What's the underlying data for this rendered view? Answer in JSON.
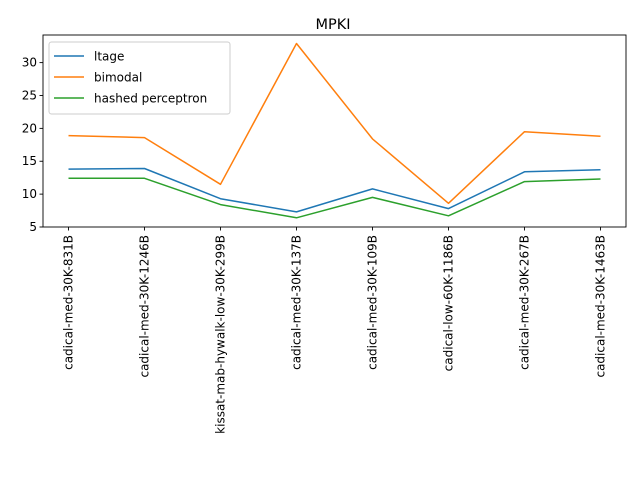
{
  "chart_data": {
    "type": "line",
    "title": "MPKI",
    "xlabel": "",
    "ylabel": "",
    "categories": [
      "cadical-med-30K-831B",
      "cadical-med-30K-1246B",
      "kissat-mab-hywalk-low-30K-299B",
      "cadical-med-30K-137B",
      "cadical-med-30K-109B",
      "cadical-low-60K-1186B",
      "cadical-med-30K-267B",
      "cadical-med-30K-1463B"
    ],
    "yticks": [
      5,
      10,
      15,
      20,
      25,
      30
    ],
    "ylim": [
      5.0,
      34.2
    ],
    "grid": false,
    "legend_position": "top-left",
    "series": [
      {
        "name": "ltage",
        "color": "#1f77b4",
        "values": [
          13.8,
          13.9,
          9.3,
          7.3,
          10.8,
          7.8,
          13.4,
          13.7
        ]
      },
      {
        "name": "bimodal",
        "color": "#ff7f0e",
        "values": [
          18.9,
          18.6,
          11.5,
          32.9,
          18.4,
          8.6,
          19.5,
          18.8
        ]
      },
      {
        "name": "hashed perceptron",
        "color": "#2ca02c",
        "values": [
          12.4,
          12.4,
          8.4,
          6.4,
          9.5,
          6.7,
          11.9,
          12.3
        ]
      }
    ]
  }
}
